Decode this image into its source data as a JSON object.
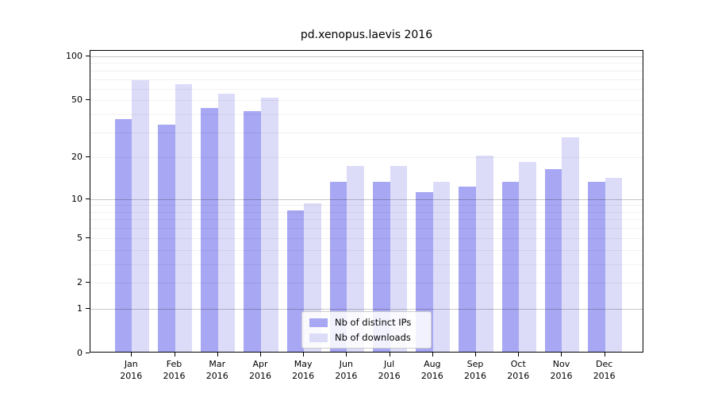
{
  "chart_data": {
    "type": "bar",
    "title": "pd.xenopus.laevis 2016",
    "categories": [
      "Jan",
      "Feb",
      "Mar",
      "Apr",
      "May",
      "Jun",
      "Jul",
      "Aug",
      "Sep",
      "Oct",
      "Nov",
      "Dec"
    ],
    "year_label": "2016",
    "series": [
      {
        "name": "Nb of distinct IPs",
        "color": "#a7a7f3",
        "values": [
          36,
          33,
          43,
          41,
          8,
          13,
          13,
          11,
          12,
          13,
          16,
          13
        ]
      },
      {
        "name": "Nb of downloads",
        "color": "#dcdcf8",
        "values": [
          67,
          63,
          54,
          51,
          9,
          17,
          17,
          13,
          20,
          18,
          27,
          14
        ]
      }
    ],
    "xlabel": "",
    "ylabel": "",
    "yscale": "log(1+x)",
    "ylim": [
      0,
      109
    ],
    "ytick_labels": [
      "100",
      "50",
      "20",
      "10",
      "5",
      "2",
      "1",
      "0"
    ],
    "ytick_values": [
      100,
      50,
      20,
      10,
      5,
      2,
      1,
      0
    ],
    "grid_values": [
      1,
      2,
      3,
      4,
      5,
      6,
      7,
      8,
      9,
      10,
      20,
      30,
      40,
      50,
      60,
      70,
      80,
      90,
      100
    ],
    "grid_major_values": [
      1,
      10,
      100
    ],
    "grid_on": true,
    "legend_position": "lower center",
    "legend": [
      "Nb of distinct IPs",
      "Nb of downloads"
    ]
  }
}
